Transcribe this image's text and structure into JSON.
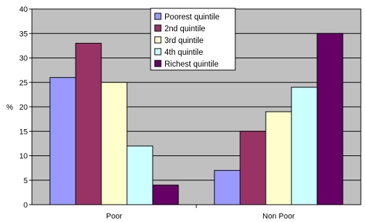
{
  "chart_data": {
    "type": "bar",
    "categories": [
      "Poor",
      "Non Poor"
    ],
    "series": [
      {
        "name": "Poorest quintile",
        "color": "#9999ff",
        "values": [
          26,
          7
        ]
      },
      {
        "name": "2nd quintile",
        "color": "#993366",
        "values": [
          33,
          15
        ]
      },
      {
        "name": "3rd quintile",
        "color": "#ffffcc",
        "values": [
          25,
          19
        ]
      },
      {
        "name": "4th quintile",
        "color": "#ccffff",
        "values": [
          12,
          24
        ]
      },
      {
        "name": "Richest quintile",
        "color": "#660066",
        "values": [
          4,
          35
        ]
      }
    ],
    "ylabel": "%",
    "ylim": [
      0,
      40
    ],
    "yticks": [
      0,
      5,
      10,
      15,
      20,
      25,
      30,
      35,
      40
    ],
    "plot_background": "#c0c0c0",
    "grid": true,
    "legend_position": "top-center"
  }
}
